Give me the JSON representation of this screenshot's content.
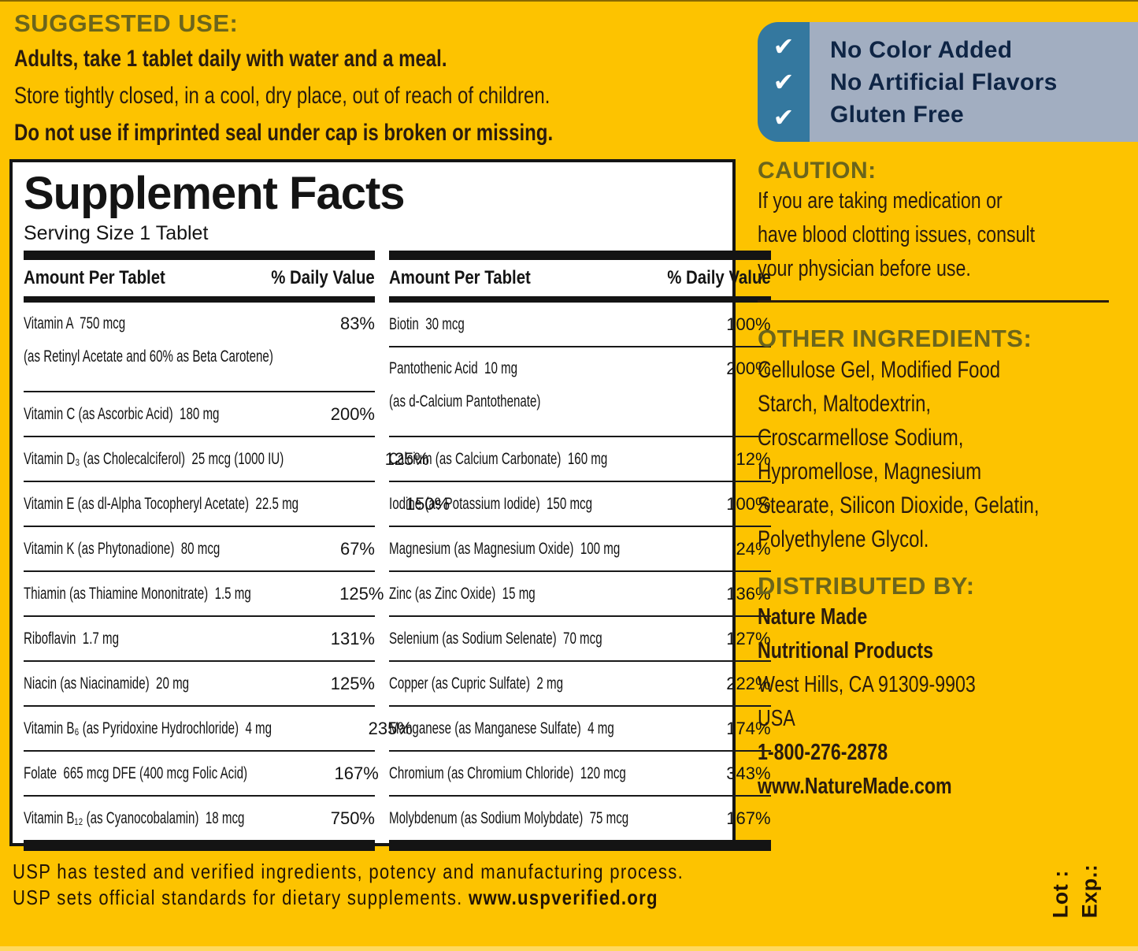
{
  "colors": {
    "background": "#FDC300",
    "heading_olive": "#6B651C",
    "text_dark": "#2A1B0E",
    "table_black": "#141414",
    "badge_blue": "#34789F",
    "badge_gray": "#A2AEC1",
    "badge_text": "#0F2545",
    "panel_white": "#FFFFFF"
  },
  "suggested_use": {
    "heading": "SUGGESTED USE:",
    "line1": "Adults, take 1 tablet daily with water and a meal.",
    "line2": "Store tightly closed, in a cool, dry place, out of reach of children.",
    "line3": "Do not use if imprinted seal under cap is broken or missing."
  },
  "badges": {
    "checkmark": "✔",
    "items": [
      "No Color Added",
      "No Artificial Flavors",
      "Gluten Free"
    ]
  },
  "facts": {
    "title": "Supplement Facts",
    "serving_size": "Serving Size 1 Tablet",
    "header_amount": "Amount Per Tablet",
    "header_dv": "% Daily Value",
    "left_rows": [
      {
        "name": "Vitamin A  750 mcg",
        "sub": "(as Retinyl Acetate and 60% as Beta Carotene)",
        "dv": "83%"
      },
      {
        "name": "Vitamin C (as Ascorbic Acid)  180 mg",
        "dv": "200%"
      },
      {
        "name": "Vitamin D₃ (as Cholecalciferol)  25 mcg (1000 IU)",
        "dv": "125%"
      },
      {
        "name": "Vitamin E (as dl-Alpha Tocopheryl Acetate)  22.5 mg",
        "dv": "150%"
      },
      {
        "name": "Vitamin K (as Phytonadione)  80 mcg",
        "dv": "67%"
      },
      {
        "name": "Thiamin (as Thiamine Mononitrate)  1.5 mg",
        "dv": "125%"
      },
      {
        "name": "Riboflavin  1.7 mg",
        "dv": "131%"
      },
      {
        "name": "Niacin (as Niacinamide)  20 mg",
        "dv": "125%"
      },
      {
        "name": "Vitamin B₆ (as Pyridoxine Hydrochloride)  4 mg",
        "dv": "235%"
      },
      {
        "name": "Folate  665 mcg DFE (400 mcg Folic Acid)",
        "dv": "167%"
      },
      {
        "name": "Vitamin B₁₂ (as Cyanocobalamin)  18 mcg",
        "dv": "750%"
      }
    ],
    "right_rows": [
      {
        "name": "Biotin  30 mcg",
        "dv": "100%"
      },
      {
        "name": "Pantothenic Acid  10 mg",
        "sub": "(as d-Calcium Pantothenate)",
        "dv": "200%"
      },
      {
        "name": "Calcium (as Calcium Carbonate)  160 mg",
        "dv": "12%"
      },
      {
        "name": "Iodine (as Potassium Iodide)  150 mcg",
        "dv": "100%"
      },
      {
        "name": "Magnesium (as Magnesium Oxide)  100 mg",
        "dv": "24%"
      },
      {
        "name": "Zinc (as Zinc Oxide)  15 mg",
        "dv": "136%"
      },
      {
        "name": "Selenium (as Sodium Selenate)  70 mcg",
        "dv": "127%"
      },
      {
        "name": "Copper (as Cupric Sulfate)  2 mg",
        "dv": "222%"
      },
      {
        "name": "Manganese (as Manganese Sulfate)  4 mg",
        "dv": "174%"
      },
      {
        "name": "Chromium (as Chromium Chloride)  120 mcg",
        "dv": "343%"
      },
      {
        "name": "Molybdenum (as Sodium Molybdate)  75 mcg",
        "dv": "167%"
      }
    ]
  },
  "caution": {
    "heading": "CAUTION:",
    "lines": [
      "If you are taking medication or",
      "have blood clotting issues, consult",
      "your physician before use."
    ]
  },
  "other_ingredients": {
    "heading": "OTHER INGREDIENTS:",
    "lines": [
      "Cellulose Gel, Modified Food",
      "Starch, Maltodextrin,",
      "Croscarmellose Sodium,",
      "Hypromellose, Magnesium",
      "Stearate, Silicon Dioxide, Gelatin,",
      "Polyethylene Glycol."
    ]
  },
  "distributed_by": {
    "heading": "DISTRIBUTED BY:",
    "line1": "Nature Made",
    "line2": "Nutritional Products",
    "line3": "West Hills, CA 91309-9903",
    "line4": "USA",
    "phone": "1-800-276-2878",
    "website": "www.NatureMade.com"
  },
  "usp": {
    "line1": "USP has tested and verified ingredients, potency and manufacturing process.",
    "line2": "USP sets official standards for dietary supplements. ",
    "line2_url": "www.uspverified.org"
  },
  "lot_exp": {
    "lot": "Lot :",
    "exp": "Exp.:"
  }
}
